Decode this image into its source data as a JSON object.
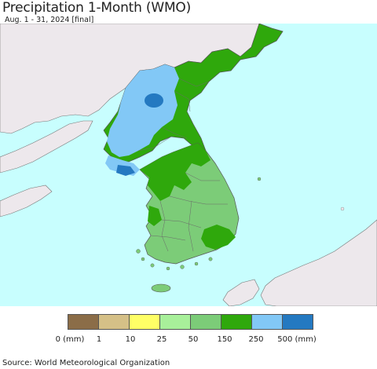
{
  "header": {
    "title": "Precipitation 1-Month (WMO)",
    "subtitle": "Aug. 1 - 31, 2024 [final]"
  },
  "map": {
    "colors": {
      "sea": "#c8fefe",
      "foreign_land": "#ede8ec",
      "below_25": "#ffff66",
      "25_50": "#a8f09a",
      "50_150": "#7ccc78",
      "150_250": "#2fa80c",
      "250_500": "#82c8f6",
      "above_500": "#2479c1",
      "border": "#555555"
    }
  },
  "legend": {
    "swatches": [
      {
        "color": "#8b6d48"
      },
      {
        "color": "#d5c087"
      },
      {
        "color": "#ffff66"
      },
      {
        "color": "#a8f09a"
      },
      {
        "color": "#7ccc78"
      },
      {
        "color": "#2fa80c"
      },
      {
        "color": "#82c8f6"
      },
      {
        "color": "#2479c1"
      }
    ],
    "ticks": [
      "0 (mm)",
      "1",
      "10",
      "25",
      "50",
      "150",
      "250",
      "500 (mm)"
    ]
  },
  "footer": {
    "source": "Source: World Meteorological Organization"
  }
}
